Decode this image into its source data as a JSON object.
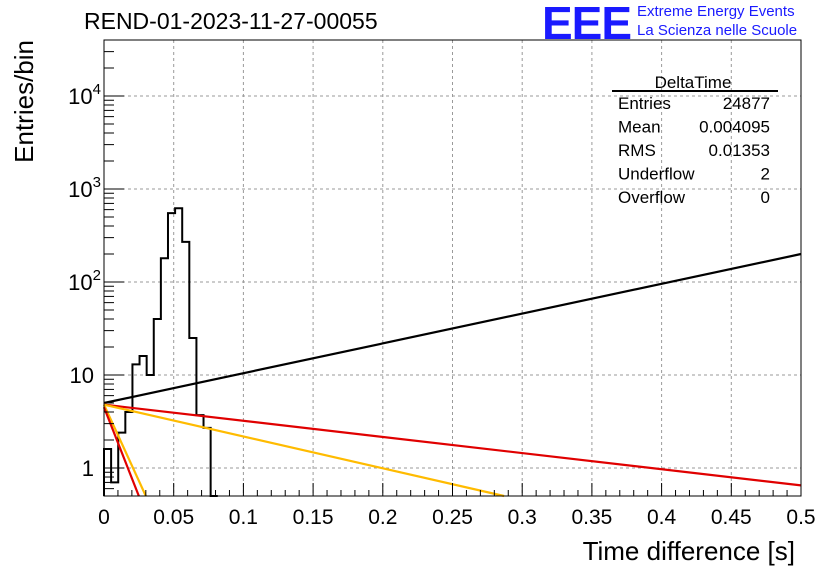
{
  "chart_data": {
    "type": "histogram",
    "title": "REND-01-2023-11-27-00055",
    "xlabel": "Time difference [s]",
    "ylabel": "Entries/bin",
    "xlim": [
      0,
      0.5
    ],
    "ylim": [
      0.5,
      40000
    ],
    "yscale": "log",
    "grid": true,
    "x_ticks": [
      "0",
      "0.05",
      "0.1",
      "0.15",
      "0.2",
      "0.25",
      "0.3",
      "0.35",
      "0.4",
      "0.45",
      "0.5"
    ],
    "x_tick_values": [
      0,
      0.05,
      0.1,
      0.15,
      0.2,
      0.25,
      0.3,
      0.35,
      0.4,
      0.45,
      0.5
    ],
    "y_ticks": [
      {
        "value": 1,
        "base": "1",
        "exp": ""
      },
      {
        "value": 10,
        "base": "10",
        "exp": ""
      },
      {
        "value": 100,
        "base": "10",
        "exp": "2"
      },
      {
        "value": 1000,
        "base": "10",
        "exp": "3"
      },
      {
        "value": 10000,
        "base": "10",
        "exp": "4"
      }
    ],
    "histogram": {
      "bin_edges": [
        0.0,
        0.0051,
        0.0102,
        0.0153,
        0.0204,
        0.0255,
        0.0306,
        0.0357,
        0.0408,
        0.0459,
        0.051,
        0.0561,
        0.0612,
        0.0663,
        0.0714,
        0.0765,
        0.0816
      ],
      "counts": [
        1.6,
        0.7,
        2.4,
        4.0,
        13.0,
        16.0,
        10.0,
        40.0,
        180.0,
        550.0,
        620.0,
        270.0,
        25.0,
        3.7,
        2.7,
        0.4
      ]
    },
    "lines": [
      {
        "color": "#000000",
        "x": [
          0,
          0.5
        ],
        "y": [
          5.0,
          200.0
        ]
      },
      {
        "color": "#e00000",
        "x": [
          0,
          0.5
        ],
        "y": [
          4.8,
          0.65
        ]
      },
      {
        "color": "#ffbb00",
        "x": [
          0,
          0.287
        ],
        "y": [
          4.8,
          0.5
        ]
      },
      {
        "color": "#ffbb00",
        "x": [
          0,
          0.03
        ],
        "y": [
          4.8,
          0.5
        ]
      },
      {
        "color": "#e00000",
        "x": [
          0,
          0.025
        ],
        "y": [
          4.5,
          0.5
        ]
      }
    ],
    "stats": {
      "name": "DeltaTime",
      "rows": [
        {
          "label": "Entries",
          "value": "24877"
        },
        {
          "label": "Mean",
          "value": "0.004095"
        },
        {
          "label": "RMS",
          "value": "0.01353"
        },
        {
          "label": "Underflow",
          "value": "2"
        },
        {
          "label": "Overflow",
          "value": "0"
        }
      ]
    }
  },
  "logo": {
    "mark": "EEE",
    "line1": "Extreme Energy Events",
    "line2": "La Scienza nelle Scuole"
  }
}
